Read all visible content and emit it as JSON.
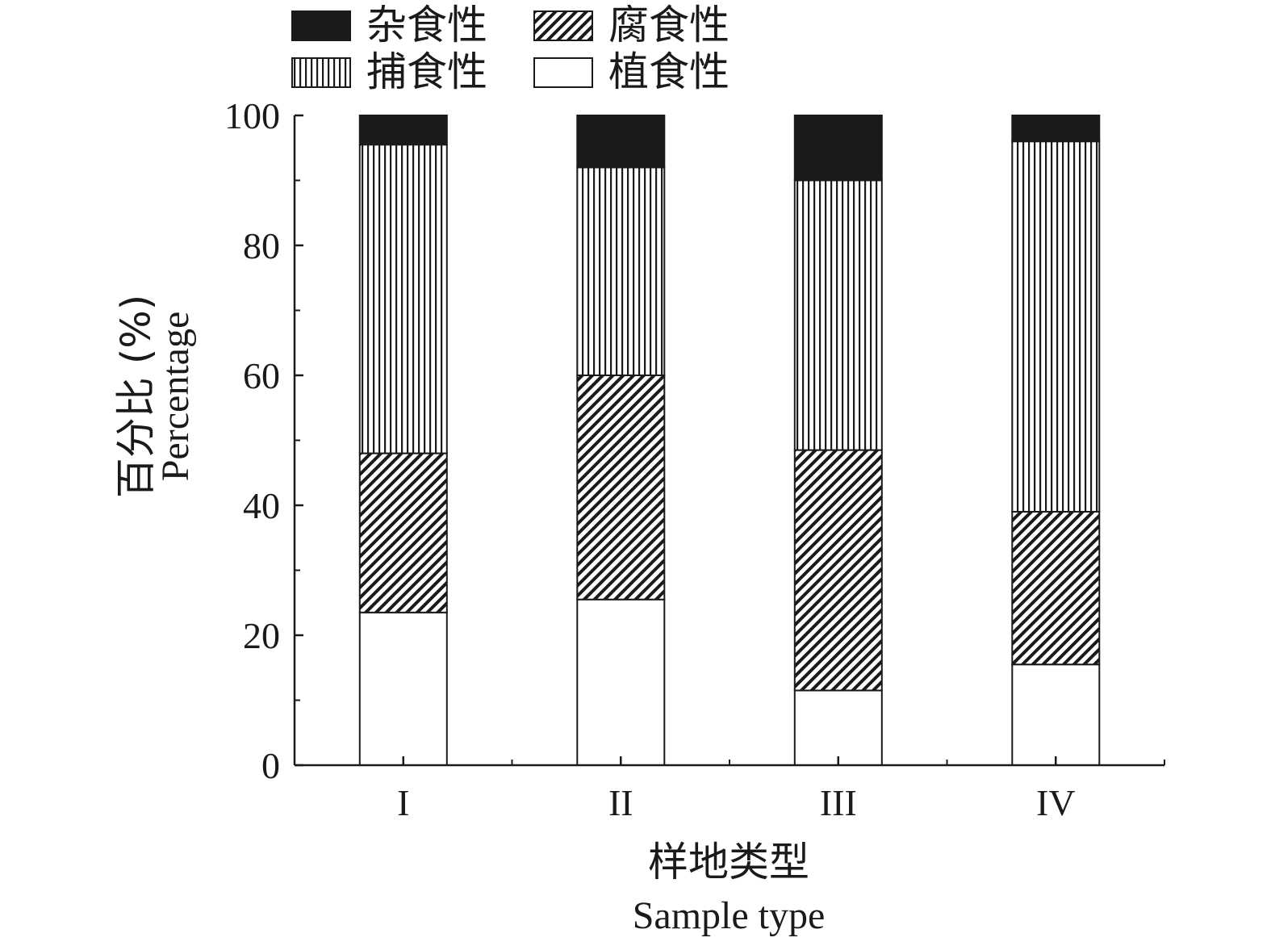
{
  "chart_data": {
    "type": "bar",
    "stacked": true,
    "categories": [
      "I",
      "II",
      "III",
      "IV"
    ],
    "series": [
      {
        "name": "植食性",
        "pattern": "white",
        "values": [
          23.5,
          25.5,
          11.5,
          15.5
        ]
      },
      {
        "name": "腐食性",
        "pattern": "diagonal-hatch",
        "values": [
          24.5,
          34.5,
          37.0,
          23.5
        ]
      },
      {
        "name": "捕食性",
        "pattern": "vertical-stripe",
        "values": [
          47.5,
          32.0,
          41.5,
          57.0
        ]
      },
      {
        "name": "杂食性",
        "pattern": "solid-black",
        "values": [
          4.5,
          8.0,
          10.0,
          4.0
        ]
      }
    ],
    "legend_order": [
      "杂食性",
      "腐食性",
      "捕食性",
      "植食性"
    ],
    "legend_placement": "top-left",
    "xlabel": "样地类型",
    "xlabel_en": "Sample type",
    "ylabel": "百分比 (%)",
    "ylabel_en": "Percentage",
    "ylim": [
      0,
      100
    ],
    "yticks": [
      0,
      20,
      40,
      60,
      80,
      100
    ],
    "grid": false,
    "colors": {
      "ink": "#1a1a1a",
      "fill_white": "#ffffff"
    }
  }
}
